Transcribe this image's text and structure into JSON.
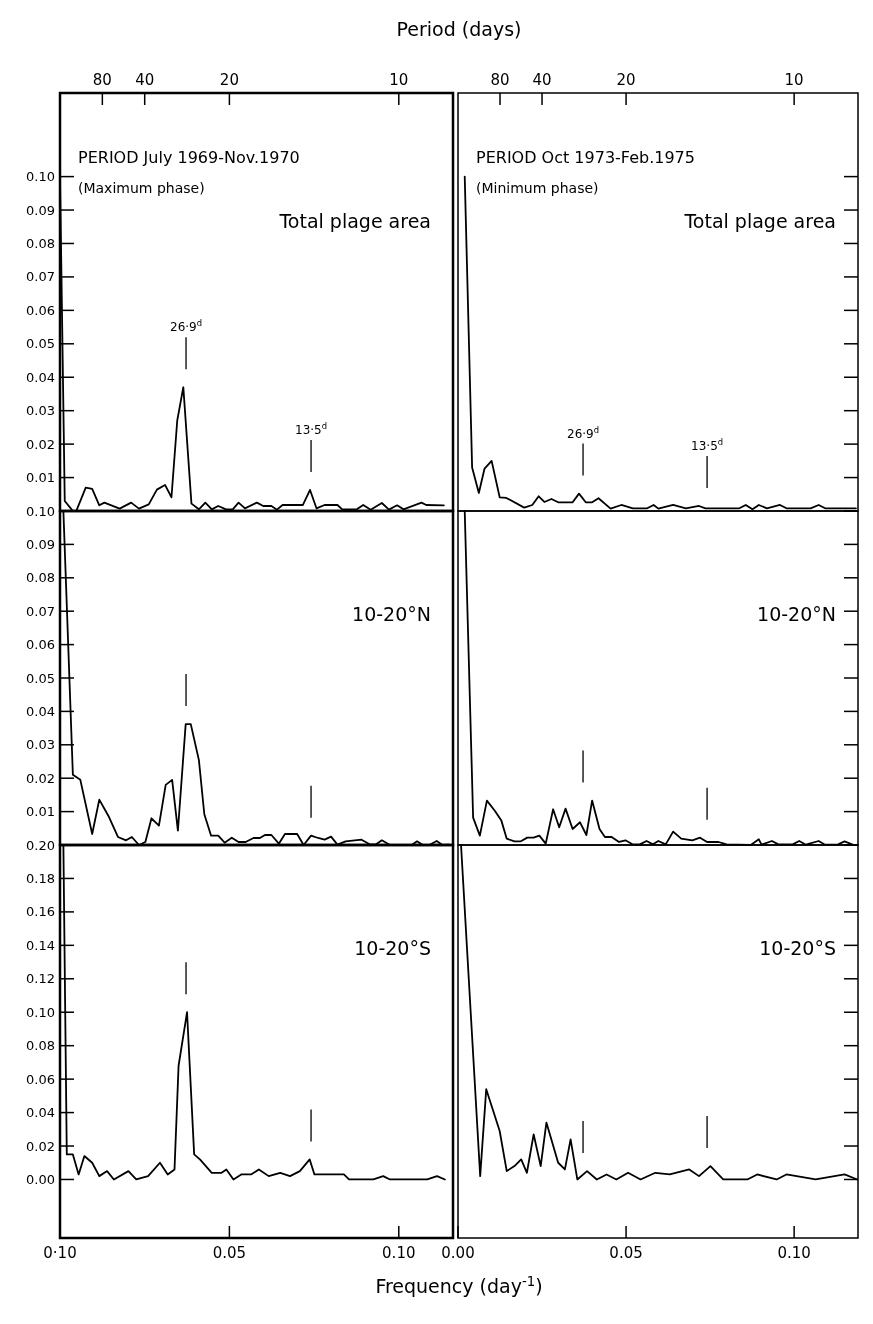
{
  "chart_data": [
    {
      "type": "line",
      "title": "Total plage area",
      "annotations": [
        "PERIOD July 1969-Nov.1970",
        "(Maximum phase)",
        "80",
        "40",
        "20",
        "10"
      ],
      "x2label": "Period (days)",
      "color": "#000000",
      "xlim": [
        0,
        0.116
      ],
      "ylim": [
        0,
        0.125
      ],
      "tick_labels": "y",
      "yticks": [
        {
          "value": 0,
          "label": null
        },
        {
          "value": 0.01,
          "label": "0.01"
        },
        {
          "value": 0.02,
          "label": "0.02"
        },
        {
          "value": 0.03,
          "label": "0.03"
        },
        {
          "value": 0.04,
          "label": "0.04"
        },
        {
          "value": 0.05,
          "label": "0.05"
        },
        {
          "value": 0.06,
          "label": "0.06"
        },
        {
          "value": 0.07,
          "label": "0.07"
        },
        {
          "value": 0.08,
          "label": "0.08"
        },
        {
          "value": 0.09,
          "label": "0.09"
        },
        {
          "value": 0.1,
          "label": "0.10"
        }
      ],
      "ref_lines": [
        {
          "axis": "x",
          "value": 0.0372,
          "label": "26·9$^{d}$"
        },
        {
          "axis": "x",
          "value": 0.0741,
          "label": "13·5$^{d}$"
        }
      ],
      "x": [
        0,
        0.0014,
        0.0038,
        0.0048,
        0.0076,
        0.0095,
        0.0116,
        0.0131,
        0.0176,
        0.021,
        0.0233,
        0.0262,
        0.0286,
        0.031,
        0.0329,
        0.0346,
        0.0364,
        0.0388,
        0.041,
        0.0429,
        0.0448,
        0.0467,
        0.049,
        0.051,
        0.0527,
        0.0546,
        0.0581,
        0.06,
        0.0624,
        0.064,
        0.0657,
        0.0717,
        0.0738,
        0.0757,
        0.0781,
        0.0819,
        0.0833,
        0.0876,
        0.0895,
        0.0917,
        0.095,
        0.0971,
        0.0995,
        0.1014,
        0.1067,
        0.1081,
        0.1133
      ],
      "values": [
        0.1,
        0.003,
        0,
        0,
        0.007,
        0.0066,
        0.0017,
        0.0025,
        0.0007,
        0.0025,
        0.0007,
        0.002,
        0.0064,
        0.0078,
        0.0041,
        0.027,
        0.037,
        0.0022,
        0.0005,
        0.0025,
        0.0005,
        0.0015,
        0.0005,
        0.0005,
        0.0025,
        0.0008,
        0.0025,
        0.0015,
        0.0015,
        0.0004,
        0.0018,
        0.0018,
        0.0063,
        0.0008,
        0.0018,
        0.0018,
        0.0005,
        0.0005,
        0.0018,
        0.0004,
        0.0024,
        0.0004,
        0.0017,
        0.0005,
        0.0025,
        0.0018,
        0.0017
      ]
    },
    {
      "type": "line",
      "title": "Total plage area",
      "annotations": [
        "PERIOD Oct 1973-Feb.1975",
        "(Minimum phase)",
        "80",
        "40",
        "20",
        "10"
      ],
      "color": "#000000",
      "xlim": [
        0,
        0.119
      ],
      "ylim": [
        0,
        0.125
      ],
      "tick_labels": false,
      "yticks": [
        0,
        0.01,
        0.02,
        0.03,
        0.04,
        0.05,
        0.06,
        0.07,
        0.08,
        0.09,
        0.1
      ],
      "ref_lines": [
        {
          "axis": "x",
          "value": 0.0372,
          "label": "26·9$^{d}$"
        },
        {
          "axis": "x",
          "value": 0.0741,
          "label": "13·5$^{d}$"
        }
      ],
      "x": [
        0.002,
        0.0042,
        0.0062,
        0.0079,
        0.01,
        0.0124,
        0.0144,
        0.0197,
        0.0221,
        0.024,
        0.0257,
        0.0278,
        0.0298,
        0.0341,
        0.036,
        0.038,
        0.0399,
        0.0418,
        0.0454,
        0.0486,
        0.052,
        0.0563,
        0.0582,
        0.0596,
        0.064,
        0.0678,
        0.0717,
        0.0736,
        0.0837,
        0.0856,
        0.0876,
        0.0895,
        0.0919,
        0.0958,
        0.0977,
        0.1049,
        0.1073,
        0.1092,
        0.1184
      ],
      "values": [
        0.1,
        0.013,
        0.0054,
        0.0127,
        0.015,
        0.0041,
        0.0039,
        0.001,
        0.0018,
        0.0044,
        0.0027,
        0.0036,
        0.0026,
        0.0026,
        0.0052,
        0.0026,
        0.0026,
        0.0038,
        0.0007,
        0.0018,
        0.0008,
        0.0008,
        0.0018,
        0.0007,
        0.0018,
        0.0008,
        0.0015,
        0.0008,
        0.0008,
        0.0018,
        0.0005,
        0.0018,
        0.0008,
        0.0018,
        0.0008,
        0.0008,
        0.0018,
        0.0008,
        0.0008
      ]
    },
    {
      "type": "line",
      "title": "10-20°N",
      "color": "#000000",
      "xlim": [
        0,
        0.116
      ],
      "ylim": [
        0,
        0.1
      ],
      "tick_labels": "y",
      "yticks": [
        {
          "value": 0,
          "label": null
        },
        {
          "value": 0.01,
          "label": "0.01"
        },
        {
          "value": 0.02,
          "label": "0.02"
        },
        {
          "value": 0.03,
          "label": "0.03"
        },
        {
          "value": 0.04,
          "label": "0.04"
        },
        {
          "value": 0.05,
          "label": "0.05"
        },
        {
          "value": 0.06,
          "label": "0.06"
        },
        {
          "value": 0.07,
          "label": "0.07"
        },
        {
          "value": 0.08,
          "label": "0.08"
        },
        {
          "value": 0.09,
          "label": "0.09"
        },
        {
          "value": 0.1,
          "label": "0.10"
        }
      ],
      "ref_lines": [
        {
          "axis": "x",
          "value": 0.0372
        },
        {
          "axis": "x",
          "value": 0.0741
        }
      ],
      "x": [
        0.001,
        0.0038,
        0.006,
        0.0095,
        0.0116,
        0.0143,
        0.0171,
        0.0195,
        0.0212,
        0.0233,
        0.0252,
        0.027,
        0.0292,
        0.0312,
        0.0331,
        0.0348,
        0.0371,
        0.0386,
        0.041,
        0.0426,
        0.0446,
        0.0467,
        0.0486,
        0.0507,
        0.0527,
        0.0548,
        0.0571,
        0.059,
        0.0605,
        0.0624,
        0.0646,
        0.0664,
        0.07,
        0.0719,
        0.0741,
        0.0762,
        0.0781,
        0.08,
        0.0819,
        0.0843,
        0.089,
        0.0914,
        0.0933,
        0.095,
        0.0974,
        0.1038,
        0.1054,
        0.1071,
        0.109,
        0.1112,
        0.1129,
        0.1148
      ],
      "values": [
        0.1,
        0.021,
        0.0195,
        0.0033,
        0.0136,
        0.0087,
        0.0024,
        0.0014,
        0.0024,
        0,
        0.0009,
        0.008,
        0.0058,
        0.018,
        0.0195,
        0.0043,
        0.0362,
        0.0362,
        0.0254,
        0.0092,
        0.0028,
        0.0028,
        0.0007,
        0.0022,
        0.0009,
        0.0009,
        0.0021,
        0.0021,
        0.003,
        0.003,
        0.0004,
        0.0033,
        0.0033,
        0,
        0.0028,
        0.0021,
        0.0016,
        0.0025,
        0.0001,
        0.0011,
        0.0016,
        0.0002,
        0.0002,
        0.0014,
        0,
        0,
        0.0011,
        0,
        0,
        0.0012,
        0,
        0.0001
      ]
    },
    {
      "type": "line",
      "title": "10-20°N",
      "color": "#000000",
      "xlim": [
        0,
        0.119
      ],
      "ylim": [
        0,
        0.1
      ],
      "tick_labels": false,
      "yticks": [
        0,
        0.01,
        0.02,
        0.03,
        0.04,
        0.05,
        0.06,
        0.07,
        0.08,
        0.09,
        0.1
      ],
      "ref_lines": [
        {
          "axis": "x",
          "value": 0.0372
        },
        {
          "axis": "x",
          "value": 0.0741
        }
      ],
      "x": [
        0.002,
        0.0045,
        0.0065,
        0.0086,
        0.011,
        0.0129,
        0.0145,
        0.0168,
        0.0187,
        0.0206,
        0.0225,
        0.0242,
        0.0261,
        0.0283,
        0.0301,
        0.032,
        0.0341,
        0.0363,
        0.0382,
        0.0399,
        0.0421,
        0.0437,
        0.0457,
        0.0479,
        0.0498,
        0.0519,
        0.0541,
        0.0561,
        0.058,
        0.0596,
        0.0618,
        0.064,
        0.0664,
        0.0697,
        0.072,
        0.0741,
        0.0775,
        0.0799,
        0.0871,
        0.0895,
        0.0903,
        0.0934,
        0.0953,
        0.0996,
        0.1015,
        0.1035,
        0.1073,
        0.1092,
        0.1131,
        0.115,
        0.1174
      ],
      "values": [
        0.1,
        0.0082,
        0.0028,
        0.0133,
        0.0102,
        0.0073,
        0.0019,
        0.0011,
        0.0011,
        0.0022,
        0.0022,
        0.0028,
        0.0004,
        0.0107,
        0.0053,
        0.0109,
        0.0048,
        0.0068,
        0.003,
        0.0133,
        0.0048,
        0.0024,
        0.0024,
        0.0009,
        0.0014,
        0.0002,
        0.0002,
        0.0012,
        0.0002,
        0.0012,
        0.0002,
        0.004,
        0.0019,
        0.0014,
        0.0022,
        0.0009,
        0.0009,
        0.0002,
        0,
        0.0017,
        0.0001,
        0.0012,
        0.0002,
        0.0002,
        0.0012,
        0.0001,
        0.0012,
        0.0001,
        0.0002,
        0.0011,
        0.0001
      ]
    },
    {
      "type": "line",
      "title": "10-20°S",
      "xlabel": "Frequency (day$^{-1}$)",
      "annotations": [
        "0·10"
      ],
      "color": "#000000",
      "xlim": [
        0,
        0.116
      ],
      "ylim": [
        -0.035,
        0.2
      ],
      "xticks": [
        {
          "value": 0,
          "label": null
        },
        {
          "value": 0.05,
          "label": "0.05"
        },
        {
          "value": 0.1,
          "label": "0.10"
        }
      ],
      "yticks": [
        {
          "value": 0,
          "label": "0.00"
        },
        {
          "value": 0.02,
          "label": "0.02"
        },
        {
          "value": 0.04,
          "label": "0.04"
        },
        {
          "value": 0.06,
          "label": "0.06"
        },
        {
          "value": 0.08,
          "label": "0.08"
        },
        {
          "value": 0.1,
          "label": "0.10"
        },
        {
          "value": 0.12,
          "label": "0.12"
        },
        {
          "value": 0.14,
          "label": "0.14"
        },
        {
          "value": 0.16,
          "label": "0.16"
        },
        {
          "value": 0.18,
          "label": "0.18"
        },
        {
          "value": 0.2,
          "label": "0.20"
        }
      ],
      "ref_lines": [
        {
          "axis": "x",
          "value": 0.0372
        },
        {
          "axis": "x",
          "value": 0.0741
        }
      ],
      "x": [
        0.001,
        0.002,
        0.0038,
        0.0055,
        0.0072,
        0.0095,
        0.0116,
        0.0139,
        0.0159,
        0.0202,
        0.0225,
        0.026,
        0.0295,
        0.0318,
        0.0338,
        0.035,
        0.0375,
        0.0396,
        0.0413,
        0.0448,
        0.0477,
        0.0491,
        0.0512,
        0.0535,
        0.0564,
        0.0587,
        0.0616,
        0.065,
        0.0679,
        0.0708,
        0.0737,
        0.0751,
        0.078,
        0.0838,
        0.0853,
        0.0925,
        0.0954,
        0.0974,
        0.1084,
        0.1113,
        0.1136
      ],
      "values": [
        0.2,
        0.015,
        0.015,
        0.003,
        0.014,
        0.01,
        0.002,
        0.005,
        0,
        0.005,
        0,
        0.002,
        0.01,
        0.003,
        0.006,
        0.068,
        0.1,
        0.015,
        0.012,
        0.004,
        0.004,
        0.006,
        0,
        0.003,
        0.003,
        0.006,
        0.002,
        0.004,
        0.002,
        0.005,
        0.012,
        0.003,
        0.003,
        0.003,
        0,
        0,
        0.002,
        0,
        0,
        0.002,
        0
      ]
    },
    {
      "type": "line",
      "title": "10-20°S",
      "color": "#000000",
      "xlim": [
        0,
        0.119
      ],
      "ylim": [
        -0.035,
        0.2
      ],
      "tick_labels": "x",
      "xticks": [
        {
          "value": 0,
          "label": "0.00"
        },
        {
          "value": 0.05,
          "label": "0.05"
        },
        {
          "value": 0.1,
          "label": "0.10"
        }
      ],
      "yticks": [
        0,
        0.02,
        0.04,
        0.06,
        0.08,
        0.1,
        0.12,
        0.14,
        0.16,
        0.18,
        0.2
      ],
      "ref_lines": [
        {
          "axis": "x",
          "value": 0.0372
        },
        {
          "axis": "x",
          "value": 0.0741
        }
      ],
      "x": [
        0.0009,
        0.0066,
        0.0084,
        0.0124,
        0.0145,
        0.0168,
        0.0188,
        0.0205,
        0.0225,
        0.0246,
        0.0263,
        0.0298,
        0.0318,
        0.0335,
        0.0355,
        0.0384,
        0.0413,
        0.0442,
        0.0471,
        0.0506,
        0.0543,
        0.0587,
        0.063,
        0.0688,
        0.0717,
        0.0751,
        0.0789,
        0.0861,
        0.089,
        0.0948,
        0.0977,
        0.1064,
        0.115,
        0.1188
      ],
      "values": [
        0.2,
        0.002,
        0.054,
        0.029,
        0.005,
        0.008,
        0.012,
        0.004,
        0.027,
        0.008,
        0.034,
        0.01,
        0.006,
        0.024,
        0,
        0.005,
        0,
        0.003,
        0,
        0.004,
        0,
        0.004,
        0.003,
        0.006,
        0.002,
        0.008,
        0,
        0,
        0.003,
        0,
        0.003,
        0,
        0.003,
        0
      ]
    }
  ]
}
